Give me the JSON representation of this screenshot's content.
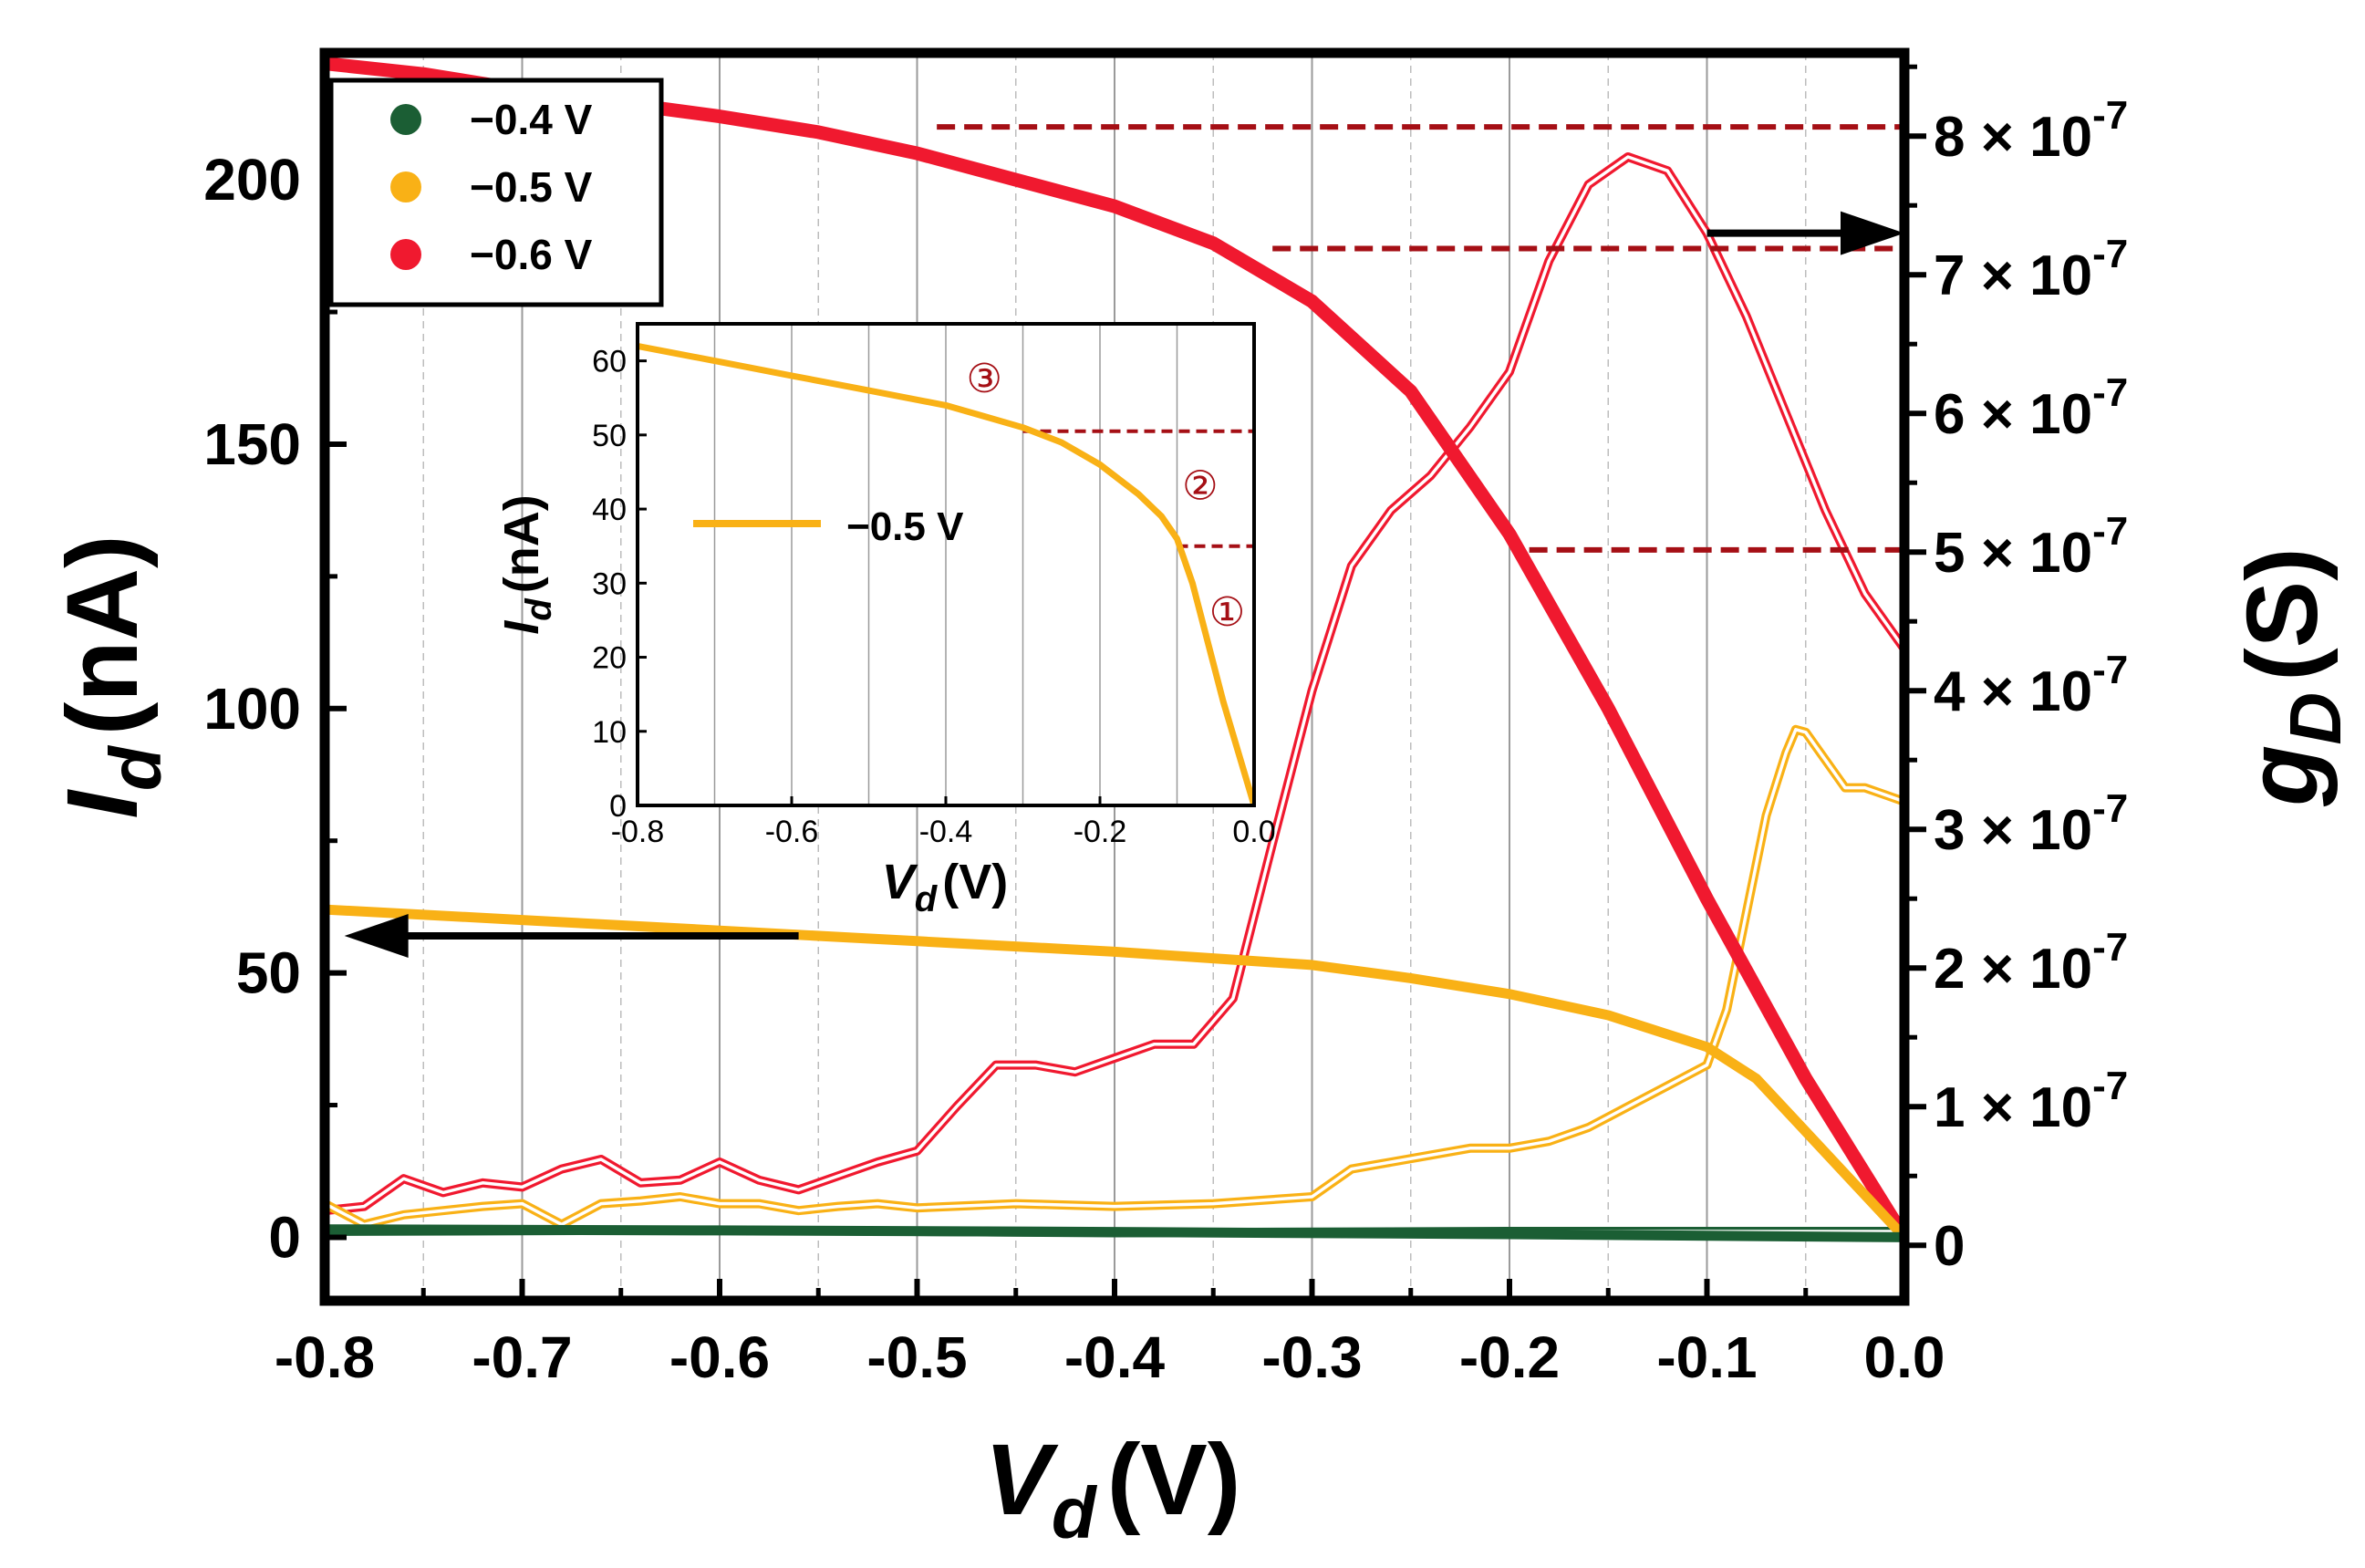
{
  "chart_data": [
    {
      "type": "line",
      "title": "",
      "xlabel": "V_d (V)",
      "xlabel_main": "V",
      "xlabel_sub": "d",
      "xlabel_unit": "(V)",
      "ylabel_left_main": "I",
      "ylabel_left_sub": "d",
      "ylabel_left_unit": "(nA)",
      "ylabel_right_main": "g",
      "ylabel_right_sub": "D",
      "ylabel_right_unit": "(S)",
      "xlim": [
        -0.8,
        0.0
      ],
      "ylim_left": [
        -12,
        224
      ],
      "ylim_right": [
        -0.4,
        8.6
      ],
      "right_unit_scale": 1e-07,
      "x_ticks": [
        -0.8,
        -0.7,
        -0.6,
        -0.5,
        -0.4,
        -0.3,
        -0.2,
        -0.1,
        0.0
      ],
      "x_tick_labels": [
        "-0.8",
        "-0.7",
        "-0.6",
        "-0.5",
        "-0.4",
        "-0.3",
        "-0.2",
        "-0.1",
        "0.0"
      ],
      "y_ticks_left": [
        0,
        50,
        100,
        150,
        200
      ],
      "y_tick_labels_left": [
        "0",
        "50",
        "100",
        "150",
        "200"
      ],
      "y_ticks_right": [
        0,
        1,
        2,
        3,
        4,
        5,
        6,
        7,
        8
      ],
      "y_tick_labels_right": [
        {
          "mantissa": "",
          "exp": "",
          "plain": "0"
        },
        {
          "mantissa": "1 × 10",
          "exp": "-7",
          "plain": ""
        },
        {
          "mantissa": "2 × 10",
          "exp": "-7",
          "plain": ""
        },
        {
          "mantissa": "3 × 10",
          "exp": "-7",
          "plain": ""
        },
        {
          "mantissa": "4 × 10",
          "exp": "-7",
          "plain": ""
        },
        {
          "mantissa": "5 × 10",
          "exp": "-7",
          "plain": ""
        },
        {
          "mantissa": "6 × 10",
          "exp": "-7",
          "plain": ""
        },
        {
          "mantissa": "7 × 10",
          "exp": "-7",
          "plain": ""
        },
        {
          "mantissa": "8 × 10",
          "exp": "-7",
          "plain": ""
        }
      ],
      "grid": "vertical",
      "legend_position": "top-left",
      "legend": [
        {
          "label": "−0.4 V",
          "color": "#1b5e34"
        },
        {
          "label": "−0.5 V",
          "color": "#f9b116"
        },
        {
          "label": "−0.6 V",
          "color": "#f0192f"
        }
      ],
      "series_current": [
        {
          "name": "−0.6 V",
          "axis": "left",
          "color": "#f0192f",
          "x": [
            -0.8,
            -0.75,
            -0.7,
            -0.65,
            -0.6,
            -0.55,
            -0.5,
            -0.45,
            -0.4,
            -0.35,
            -0.3,
            -0.25,
            -0.2,
            -0.15,
            -0.1,
            -0.05,
            0.0
          ],
          "y": [
            222,
            220,
            217,
            214.5,
            212,
            209,
            205,
            200,
            195,
            188,
            177,
            160,
            133,
            100,
            64,
            30,
            0
          ]
        },
        {
          "name": "−0.5 V",
          "axis": "left",
          "color": "#f9b116",
          "x": [
            -0.8,
            -0.7,
            -0.6,
            -0.5,
            -0.4,
            -0.3,
            -0.25,
            -0.2,
            -0.15,
            -0.1,
            -0.075,
            -0.05,
            -0.025,
            0.0
          ],
          "y": [
            62,
            60,
            58,
            56,
            54,
            51.5,
            49,
            46,
            42,
            36,
            30,
            20,
            10,
            0
          ]
        },
        {
          "name": "−0.4 V",
          "axis": "left",
          "color": "#1b5e34",
          "x": [
            -0.8,
            -0.6,
            -0.4,
            -0.2,
            0.0
          ],
          "y": [
            1.5,
            1.3,
            1.0,
            0.6,
            0.0
          ]
        }
      ],
      "series_conductance": [
        {
          "name": "−0.6 V",
          "axis": "right",
          "unit": "1e-7 S",
          "color": "#f0192f",
          "x": [
            -0.8,
            -0.78,
            -0.76,
            -0.74,
            -0.72,
            -0.7,
            -0.68,
            -0.66,
            -0.64,
            -0.62,
            -0.6,
            -0.58,
            -0.56,
            -0.54,
            -0.52,
            -0.5,
            -0.48,
            -0.46,
            -0.44,
            -0.42,
            -0.4,
            -0.38,
            -0.36,
            -0.34,
            -0.32,
            -0.3,
            -0.28,
            -0.26,
            -0.24,
            -0.22,
            -0.2,
            -0.18,
            -0.16,
            -0.14,
            -0.12,
            -0.1,
            -0.08,
            -0.06,
            -0.04,
            -0.02,
            0.0
          ],
          "y": [
            0.25,
            0.28,
            0.48,
            0.38,
            0.45,
            0.42,
            0.55,
            0.62,
            0.45,
            0.47,
            0.6,
            0.47,
            0.4,
            0.5,
            0.6,
            0.68,
            1.0,
            1.3,
            1.3,
            1.25,
            1.35,
            1.45,
            1.45,
            1.78,
            2.9,
            4.0,
            4.9,
            5.3,
            5.55,
            5.9,
            6.3,
            7.1,
            7.65,
            7.85,
            7.75,
            7.3,
            6.7,
            6.0,
            5.3,
            4.7,
            4.3
          ]
        },
        {
          "name": "−0.5 V",
          "axis": "right",
          "unit": "1e-7 S",
          "color": "#f9b116",
          "x": [
            -0.8,
            -0.78,
            -0.76,
            -0.74,
            -0.72,
            -0.7,
            -0.68,
            -0.66,
            -0.64,
            -0.62,
            -0.6,
            -0.58,
            -0.56,
            -0.54,
            -0.52,
            -0.5,
            -0.45,
            -0.4,
            -0.35,
            -0.3,
            -0.28,
            -0.26,
            -0.24,
            -0.22,
            -0.2,
            -0.18,
            -0.16,
            -0.14,
            -0.12,
            -0.1,
            -0.09,
            -0.08,
            -0.07,
            -0.06,
            -0.055,
            -0.05,
            -0.04,
            -0.03,
            -0.02,
            -0.01,
            0.0
          ],
          "y": [
            0.3,
            0.15,
            0.22,
            0.25,
            0.28,
            0.3,
            0.15,
            0.3,
            0.32,
            0.35,
            0.3,
            0.3,
            0.25,
            0.28,
            0.3,
            0.27,
            0.3,
            0.28,
            0.3,
            0.35,
            0.55,
            0.6,
            0.65,
            0.7,
            0.7,
            0.75,
            0.85,
            1.0,
            1.15,
            1.3,
            1.7,
            2.4,
            3.1,
            3.55,
            3.72,
            3.7,
            3.5,
            3.3,
            3.3,
            3.25,
            3.2
          ]
        },
        {
          "name": "−0.4 V",
          "axis": "right",
          "unit": "1e-7 S",
          "color": "#1b5e34",
          "x": [
            -0.8,
            -0.6,
            -0.4,
            -0.2,
            0.0
          ],
          "y": [
            0.1,
            0.11,
            0.09,
            0.1,
            0.1
          ]
        }
      ],
      "annotations": [
        {
          "type": "arrow",
          "direction": "left",
          "at_x": -0.56,
          "y_left": 57,
          "to_x": -0.79
        },
        {
          "type": "arrow",
          "direction": "right",
          "at_x": -0.1,
          "y_right": 7.3,
          "to_x": 0.0
        },
        {
          "type": "dashed",
          "x_from": -0.49,
          "y_left": 210
        },
        {
          "type": "dashed",
          "x_from": -0.32,
          "y_left": 187
        },
        {
          "type": "dashed",
          "x_from": -0.19,
          "y_left": 130
        }
      ]
    },
    {
      "type": "line",
      "inset": true,
      "xlabel_main": "V",
      "xlabel_sub": "d",
      "xlabel_unit": "(V)",
      "ylabel_main": "I",
      "ylabel_sub": "d",
      "ylabel_unit": "(nA)",
      "xlim": [
        -0.8,
        0.0
      ],
      "ylim": [
        0,
        65
      ],
      "x_ticks": [
        -0.8,
        -0.6,
        -0.4,
        -0.2,
        0.0
      ],
      "x_tick_labels": [
        "-0.8",
        "-0.6",
        "-0.4",
        "-0.2",
        "0.0"
      ],
      "y_ticks": [
        0,
        10,
        20,
        30,
        40,
        50,
        60
      ],
      "y_tick_labels": [
        "0",
        "10",
        "20",
        "30",
        "40",
        "50",
        "60"
      ],
      "legend_label": "−0.5 V",
      "color": "#f9b116",
      "x": [
        -0.8,
        -0.7,
        -0.6,
        -0.5,
        -0.4,
        -0.35,
        -0.3,
        -0.25,
        -0.2,
        -0.15,
        -0.12,
        -0.1,
        -0.08,
        -0.06,
        -0.04,
        -0.02,
        0.0
      ],
      "y": [
        62,
        60,
        58,
        56,
        54,
        52.5,
        51,
        49,
        46,
        42,
        39,
        36,
        30,
        22,
        14,
        7,
        0
      ],
      "regions": [
        "①",
        "②",
        "③"
      ],
      "dashed_levels": [
        50.5,
        35
      ]
    }
  ]
}
